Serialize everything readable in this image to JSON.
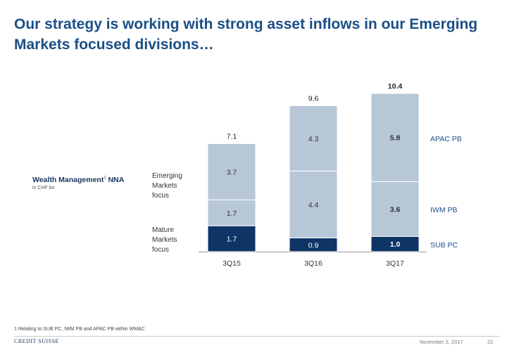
{
  "title": "Our strategy is working with strong asset inflows in our Emerging Markets focused divisions…",
  "wm": {
    "title": "Wealth Management",
    "sup": "1",
    "suffix": " NNA",
    "unit": "in CHF bn"
  },
  "side_labels": {
    "emerging": "Emerging Markets focus",
    "mature": "Mature Markets focus"
  },
  "footnote": "1 Relating to SUB PC, IWM PB and APAC PB within WM&C",
  "footer": {
    "logo": "CREDIT SUISSE",
    "date": "November 2, 2017",
    "page": "22"
  },
  "colors": {
    "title": "#1a4f86",
    "light": "#b7c7d8",
    "dark": "#0e3566",
    "segment_divider": "#ffffff"
  },
  "chart_data": {
    "type": "bar",
    "stacked": true,
    "categories": [
      "3Q15",
      "3Q16",
      "3Q17"
    ],
    "series": [
      {
        "name": "SUB PC",
        "values": [
          1.7,
          0.9,
          1.0
        ],
        "labels": [
          "1.7",
          "0.9",
          "1.0"
        ],
        "color": "#0e3566"
      },
      {
        "name": "IWM PB",
        "values": [
          1.7,
          4.4,
          3.6
        ],
        "labels": [
          "1.7",
          "4.4",
          "3.6"
        ],
        "color": "#b7c7d8"
      },
      {
        "name": "APAC PB",
        "values": [
          3.7,
          4.3,
          5.8
        ],
        "labels": [
          "3.7",
          "4.3",
          "5.8"
        ],
        "color": "#b7c7d8"
      }
    ],
    "totals": [
      7.1,
      9.6,
      10.4
    ],
    "total_labels": [
      "7.1",
      "9.6",
      "10.4"
    ],
    "bold_category": "3Q17",
    "ylim": [
      0,
      10.4
    ],
    "grid": false,
    "legend": "right"
  }
}
